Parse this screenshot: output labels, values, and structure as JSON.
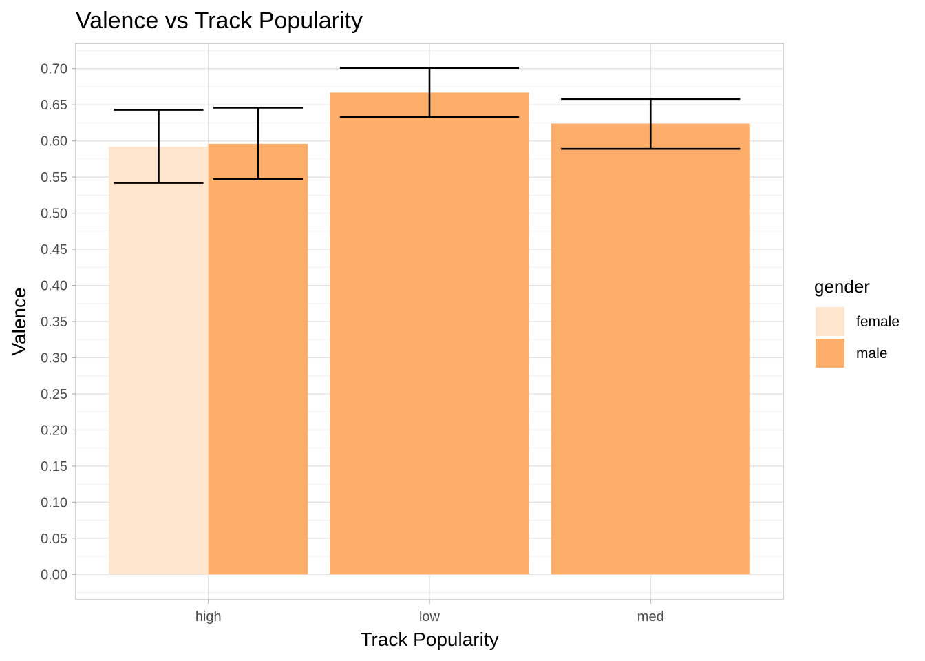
{
  "chart_data": {
    "type": "bar",
    "title": "Valence vs Track Popularity",
    "xlabel": "Track Popularity",
    "ylabel": "Valence",
    "categories": [
      "high",
      "low",
      "med"
    ],
    "series": [
      {
        "name": "female",
        "color": "#fee6ce",
        "values": [
          0.592,
          null,
          null
        ],
        "error_low": [
          0.542,
          null,
          null
        ],
        "error_high": [
          0.643,
          null,
          null
        ]
      },
      {
        "name": "male",
        "color": "#fdae6b",
        "values": [
          0.596,
          0.667,
          0.624
        ],
        "error_low": [
          0.547,
          0.633,
          0.589
        ],
        "error_high": [
          0.646,
          0.701,
          0.658
        ]
      }
    ],
    "ylim": [
      -0.035,
      0.735
    ],
    "yticks": [
      "0.00",
      "0.05",
      "0.10",
      "0.15",
      "0.20",
      "0.25",
      "0.30",
      "0.35",
      "0.40",
      "0.45",
      "0.50",
      "0.55",
      "0.60",
      "0.65",
      "0.70"
    ],
    "grid": true,
    "legend": {
      "title": "gender",
      "position": "right",
      "entries": [
        {
          "label": "female",
          "color": "#fee6ce"
        },
        {
          "label": "male",
          "color": "#fdae6b"
        }
      ]
    }
  }
}
